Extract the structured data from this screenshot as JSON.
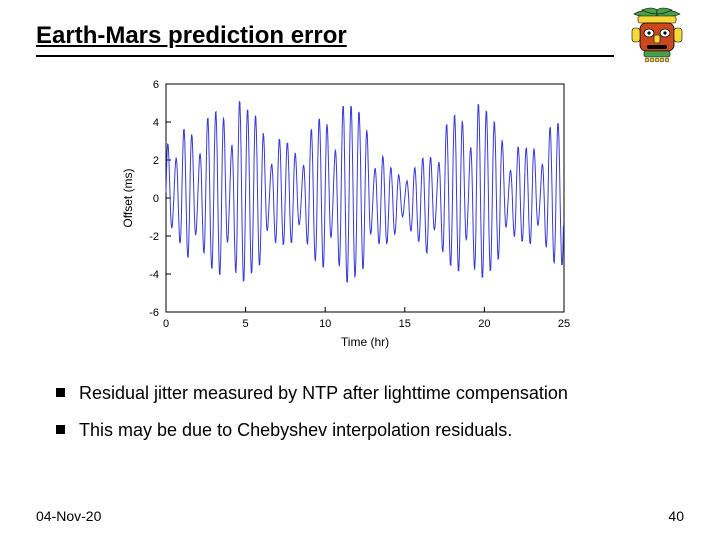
{
  "title": "Earth-Mars prediction error",
  "footer_date": "04-Nov-20",
  "footer_page": "40",
  "bullets": [
    "Residual jitter measured by NTP after  lighttime compensation",
    "This may be due to Chebyshev interpolation residuals."
  ],
  "chart": {
    "type": "line",
    "xlabel": "Time (hr)",
    "ylabel": "Offset (ms)",
    "xlim": [
      0,
      25
    ],
    "ylim": [
      -6,
      6
    ],
    "xtick_step": 5,
    "ytick_step": 2,
    "line_color": "#3a3ad6",
    "line_width": 1,
    "box_color": "#000000",
    "tick_color": "#000000",
    "background_color": "#ffffff",
    "label_fontsize": 12,
    "tick_fontsize": 11,
    "amplitudes": [
      3.0,
      1.4,
      3.2,
      3.6,
      1.6,
      3.8,
      4.2,
      4.6,
      1.8,
      5.0,
      4.6,
      4.2,
      3.8,
      1.2,
      3.0,
      2.7,
      2.6,
      1.1,
      3.2,
      3.8,
      4.2,
      1.6,
      4.6,
      4.8,
      4.4,
      4.0,
      1.3,
      2.6,
      2.0,
      1.6,
      0.7,
      1.8,
      2.2,
      2.8,
      1.2,
      3.6,
      4.0,
      4.4,
      1.7,
      4.8,
      4.5,
      4.0,
      3.4,
      1.0,
      2.6,
      2.4,
      2.8,
      1.1,
      3.4,
      3.8
    ],
    "offsets": [
      0.3,
      0.2,
      0.4,
      0.3,
      0.1,
      0.4,
      0.3,
      0.4,
      0.1,
      0.3,
      0.2,
      0.3,
      0.3,
      0.1,
      0.2,
      0.3,
      0.2,
      0.0,
      0.3,
      0.3,
      0.4,
      0.1,
      0.3,
      0.2,
      0.3,
      0.3,
      0.0,
      -0.2,
      -0.3,
      -0.2,
      0.0,
      -0.3,
      -0.2,
      -0.3,
      0.0,
      0.2,
      0.3,
      0.4,
      0.1,
      0.3,
      0.3,
      0.2,
      0.3,
      0.0,
      0.2,
      0.1,
      0.3,
      0.0,
      0.3,
      0.2
    ],
    "cycles_per_x": 2.0
  },
  "clipart": {
    "body_color": "#c84820",
    "headdress_color": "#4aa048",
    "accent_color": "#f5d83a",
    "eye_color": "#ffffff",
    "outline_color": "#000000"
  }
}
